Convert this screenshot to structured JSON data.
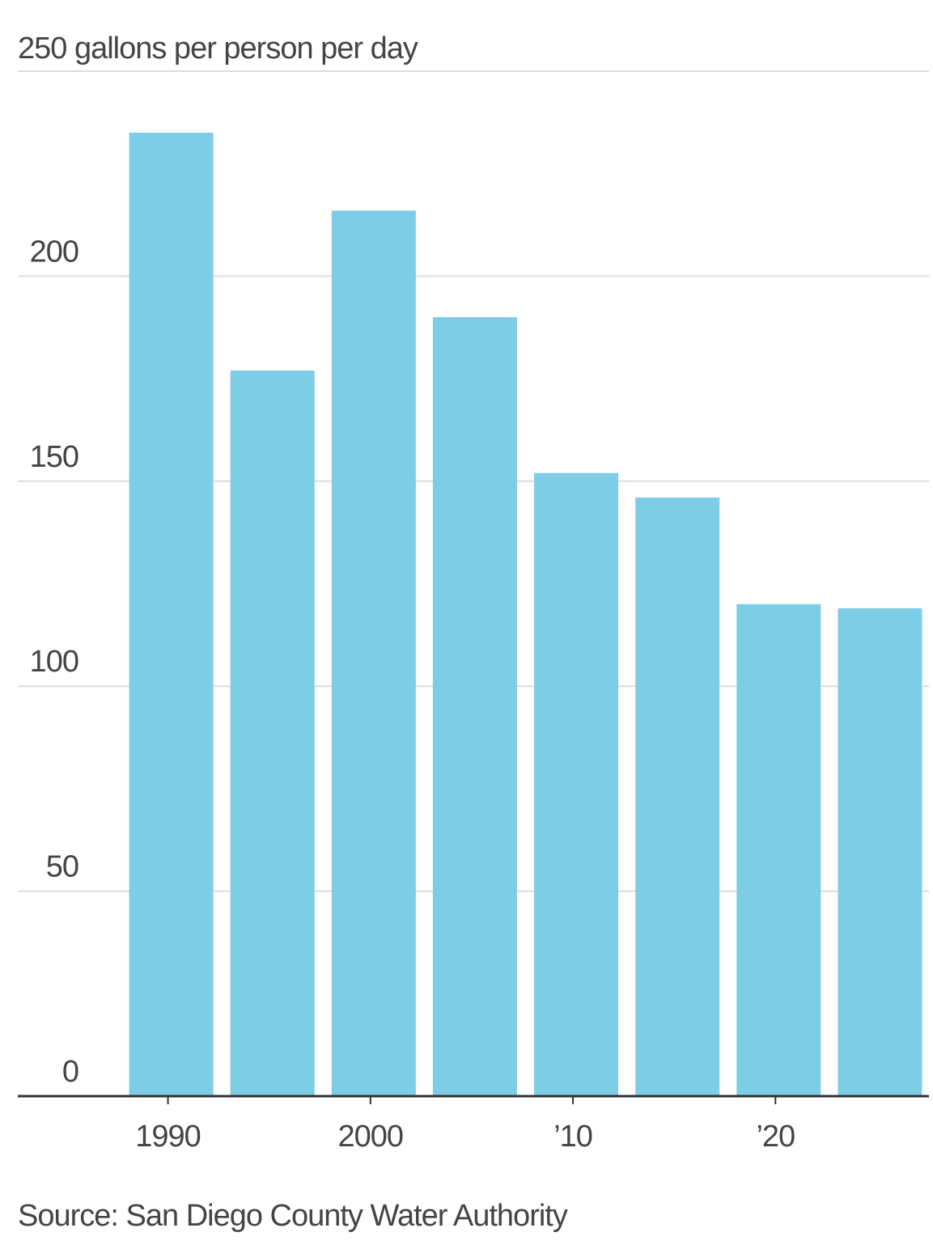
{
  "chart_data": {
    "type": "bar",
    "categories": [
      "1990",
      null,
      "2000",
      null,
      "’10",
      null,
      "’20",
      null
    ],
    "values": [
      235,
      177,
      216,
      190,
      152,
      146,
      120,
      119
    ],
    "color": "#7dcde6",
    "ylim": [
      0,
      250
    ],
    "yticks": [
      0,
      50,
      100,
      150,
      200,
      {
        "value": 250,
        "label": "250 gallons per person per day"
      }
    ],
    "grid": true,
    "source": "Source: San Diego County Water Authority"
  }
}
